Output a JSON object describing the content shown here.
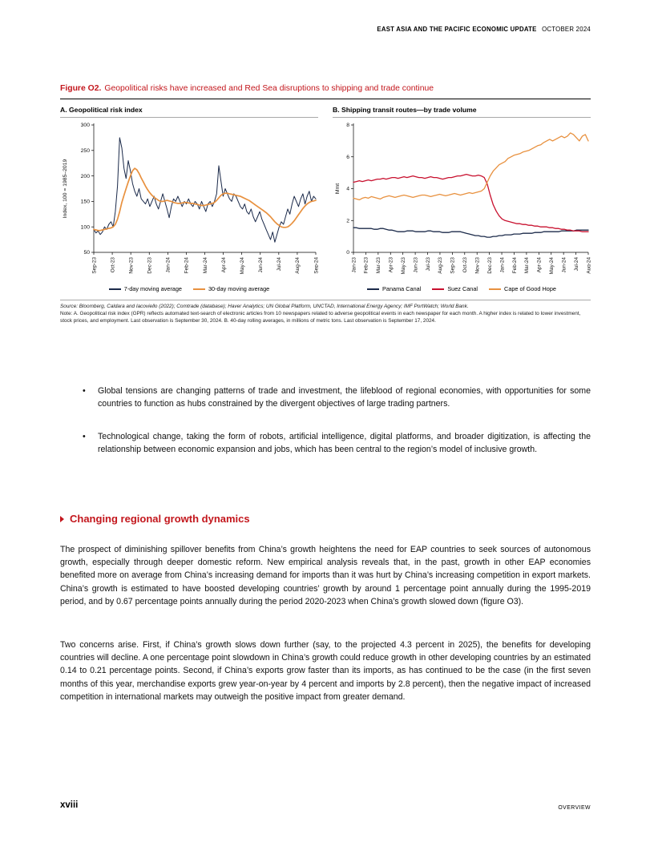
{
  "page": {
    "header_bold": "EAST ASIA AND THE PACIFIC ECONOMIC UPDATE",
    "header_regular": "OCTOBER 2024",
    "footer_page": "xviii",
    "footer_section": "OVERVIEW"
  },
  "colors": {
    "accent_red": "#C3161C",
    "navy": "#1B2A4A",
    "orange": "#E8913F",
    "red_line": "#C8102E"
  },
  "figure": {
    "label": "Figure O2.",
    "title": "Geopolitical risks have increased and Red Sea disruptions to shipping and trade continue",
    "source": "Source: Bloomberg, Caldara and Iacoviello (2022); Comtrade (database); Haver Analytics; UN Global Platform, UNCTAD, International Energy Agency; IMF PortWatch; World Bank.",
    "note": "Note: A. Geopolitical risk index (GPR) reflects automated text-search of electronic articles from 10 newspapers related to adverse geopolitical events in each newspaper for each month. A higher index is related to lower investment, stock prices, and employment. Last observation is September 30, 2024. B. 40-day rolling averages, in millions of metric tons. Last observation is September 17, 2024."
  },
  "chart_data": [
    {
      "type": "line",
      "title": "A. Geopolitical risk index",
      "ylabel": "Index, 100 = 1985–2019",
      "ylim": [
        50,
        300
      ],
      "yticks": [
        50,
        100,
        150,
        200,
        250,
        300
      ],
      "grid": false,
      "legend_position": "bottom",
      "xticklabels": [
        "Sep-23",
        "Oct-23",
        "Nov-23",
        "Dec-23",
        "Jan-24",
        "Feb-24",
        "Mar-24",
        "Apr-24",
        "May-24",
        "Jun-24",
        "Jul-24",
        "Aug-24",
        "Sep-24"
      ],
      "series": [
        {
          "name": "7-day moving average",
          "color": "#1B2A4A",
          "width": 1.0,
          "values": [
            95,
            88,
            92,
            85,
            90,
            100,
            95,
            105,
            110,
            100,
            130,
            180,
            275,
            255,
            215,
            195,
            230,
            210,
            185,
            170,
            160,
            175,
            155,
            150,
            145,
            155,
            140,
            150,
            160,
            145,
            135,
            150,
            165,
            150,
            135,
            118,
            140,
            155,
            150,
            160,
            150,
            140,
            150,
            145,
            155,
            145,
            140,
            150,
            145,
            135,
            150,
            140,
            130,
            145,
            150,
            140,
            150,
            165,
            220,
            190,
            160,
            175,
            165,
            155,
            150,
            165,
            160,
            150,
            140,
            135,
            145,
            130,
            125,
            135,
            120,
            110,
            120,
            130,
            115,
            105,
            95,
            85,
            75,
            90,
            70,
            85,
            100,
            110,
            105,
            120,
            135,
            125,
            145,
            160,
            150,
            140,
            155,
            165,
            145,
            160,
            170,
            150,
            160,
            155
          ]
        },
        {
          "name": "30-day moving average",
          "color": "#E8913F",
          "width": 1.7,
          "values": [
            95,
            94,
            93,
            93,
            94,
            95,
            96,
            97,
            98,
            100,
            105,
            115,
            130,
            148,
            162,
            175,
            188,
            200,
            210,
            215,
            212,
            205,
            196,
            188,
            180,
            173,
            167,
            162,
            158,
            155,
            152,
            150,
            150,
            151,
            152,
            151,
            150,
            148,
            147,
            146,
            146,
            147,
            148,
            148,
            147,
            146,
            146,
            145,
            144,
            143,
            142,
            142,
            143,
            144,
            145,
            146,
            148,
            152,
            157,
            162,
            165,
            166,
            166,
            165,
            164,
            163,
            162,
            161,
            160,
            158,
            156,
            154,
            152,
            149,
            146,
            143,
            140,
            137,
            134,
            131,
            128,
            124,
            120,
            115,
            110,
            106,
            103,
            100,
            99,
            99,
            100,
            103,
            107,
            112,
            118,
            124,
            130,
            136,
            141,
            145,
            148,
            150,
            151,
            152
          ]
        }
      ]
    },
    {
      "type": "line",
      "title": "B. Shipping transit routes—by trade volume",
      "ylabel": "Mmt",
      "ylim": [
        0,
        8
      ],
      "yticks": [
        0,
        2,
        4,
        6,
        8
      ],
      "grid": false,
      "legend_position": "bottom",
      "xticklabels": [
        "Jan-23",
        "Feb-23",
        "Mar-23",
        "Apr-23",
        "May-23",
        "Jun-23",
        "Jul-23",
        "Aug-23",
        "Sep-23",
        "Oct-23",
        "Nov-23",
        "Dec-23",
        "Jan-24",
        "Feb-24",
        "Mar-24",
        "Apr-24",
        "May-24",
        "Jun-24",
        "Jul-24",
        "Aug-24"
      ],
      "series": [
        {
          "name": "Panama Canal",
          "color": "#1B2A4A",
          "width": 1.3,
          "values": [
            1.55,
            1.55,
            1.5,
            1.5,
            1.5,
            1.5,
            1.5,
            1.45,
            1.45,
            1.5,
            1.5,
            1.45,
            1.4,
            1.4,
            1.35,
            1.3,
            1.3,
            1.3,
            1.35,
            1.35,
            1.35,
            1.3,
            1.3,
            1.3,
            1.3,
            1.35,
            1.35,
            1.3,
            1.3,
            1.3,
            1.25,
            1.25,
            1.25,
            1.3,
            1.3,
            1.3,
            1.3,
            1.25,
            1.2,
            1.15,
            1.1,
            1.05,
            1.05,
            1.0,
            1.0,
            0.95,
            0.95,
            1.0,
            1.0,
            1.05,
            1.05,
            1.1,
            1.1,
            1.1,
            1.15,
            1.15,
            1.15,
            1.2,
            1.2,
            1.2,
            1.2,
            1.25,
            1.25,
            1.25,
            1.3,
            1.3,
            1.3,
            1.3,
            1.3,
            1.3,
            1.35,
            1.35,
            1.35,
            1.35,
            1.35,
            1.4,
            1.4,
            1.4,
            1.4,
            1.4
          ]
        },
        {
          "name": "Suez Canal",
          "color": "#C8102E",
          "width": 1.3,
          "values": [
            4.4,
            4.45,
            4.5,
            4.45,
            4.5,
            4.55,
            4.5,
            4.55,
            4.6,
            4.6,
            4.65,
            4.6,
            4.65,
            4.7,
            4.7,
            4.65,
            4.7,
            4.75,
            4.7,
            4.75,
            4.8,
            4.75,
            4.7,
            4.7,
            4.65,
            4.7,
            4.75,
            4.7,
            4.7,
            4.65,
            4.6,
            4.65,
            4.7,
            4.7,
            4.75,
            4.8,
            4.8,
            4.85,
            4.9,
            4.85,
            4.8,
            4.8,
            4.85,
            4.8,
            4.7,
            4.3,
            3.6,
            3.0,
            2.6,
            2.3,
            2.1,
            2.0,
            1.95,
            1.9,
            1.85,
            1.8,
            1.8,
            1.75,
            1.75,
            1.7,
            1.7,
            1.65,
            1.65,
            1.6,
            1.6,
            1.6,
            1.55,
            1.55,
            1.5,
            1.5,
            1.45,
            1.45,
            1.4,
            1.4,
            1.35,
            1.35,
            1.35,
            1.3,
            1.3,
            1.3
          ]
        },
        {
          "name": "Cape of Good Hope",
          "color": "#E8913F",
          "width": 1.3,
          "values": [
            3.4,
            3.35,
            3.3,
            3.4,
            3.45,
            3.4,
            3.5,
            3.45,
            3.4,
            3.35,
            3.45,
            3.5,
            3.55,
            3.5,
            3.45,
            3.5,
            3.55,
            3.6,
            3.55,
            3.5,
            3.45,
            3.5,
            3.55,
            3.6,
            3.6,
            3.55,
            3.5,
            3.55,
            3.6,
            3.65,
            3.6,
            3.55,
            3.6,
            3.65,
            3.7,
            3.65,
            3.6,
            3.65,
            3.7,
            3.75,
            3.7,
            3.75,
            3.8,
            3.85,
            4.0,
            4.4,
            4.8,
            5.1,
            5.3,
            5.5,
            5.6,
            5.7,
            5.9,
            6.0,
            6.1,
            6.15,
            6.2,
            6.3,
            6.35,
            6.4,
            6.5,
            6.6,
            6.7,
            6.75,
            6.9,
            7.0,
            7.1,
            7.0,
            7.1,
            7.2,
            7.3,
            7.2,
            7.3,
            7.5,
            7.4,
            7.2,
            7.0,
            7.3,
            7.4,
            7.0
          ]
        }
      ]
    }
  ],
  "bullets": [
    "Global tensions are changing patterns of trade and investment, the lifeblood of regional economies, with opportunities for some countries to function as hubs constrained by the divergent objectives of large trading partners.",
    "Technological change, taking the form of robots, artificial intelligence, digital platforms, and broader digitization, is affecting the relationship between economic expansion and jobs, which has been central to the region’s model of inclusive growth."
  ],
  "section": {
    "heading": "Changing regional growth dynamics"
  },
  "paragraphs": [
    "The prospect of diminishing spillover benefits from China’s growth heightens the need for EAP countries to seek sources of autonomous growth, especially through deeper domestic reform. New empirical analysis reveals that, in the past, growth in other EAP economies benefited more on average from China’s increasing demand for imports than it was hurt by China’s increasing competition in export markets. China’s growth is estimated to have boosted developing countries’ growth by around 1 percentage point annually during the 1995-2019 period, and by 0.67 percentage points annually during the period 2020-2023 when China’s growth slowed down (figure O3).",
    "Two concerns arise. First, if China’s growth slows down further (say, to the projected 4.3 percent in 2025), the benefits for developing countries will decline. A one percentage point slowdown in China’s growth could reduce growth in other developing countries by an estimated 0.14 to 0.21 percentage points. Second, if China’s exports grow faster than its imports, as has continued to be the case (in the first seven months of this year, merchandise exports grew year-on-year by 4 percent and imports by 2.8 percent), then the negative impact of increased competition in international markets may outweigh the positive impact from greater demand."
  ]
}
